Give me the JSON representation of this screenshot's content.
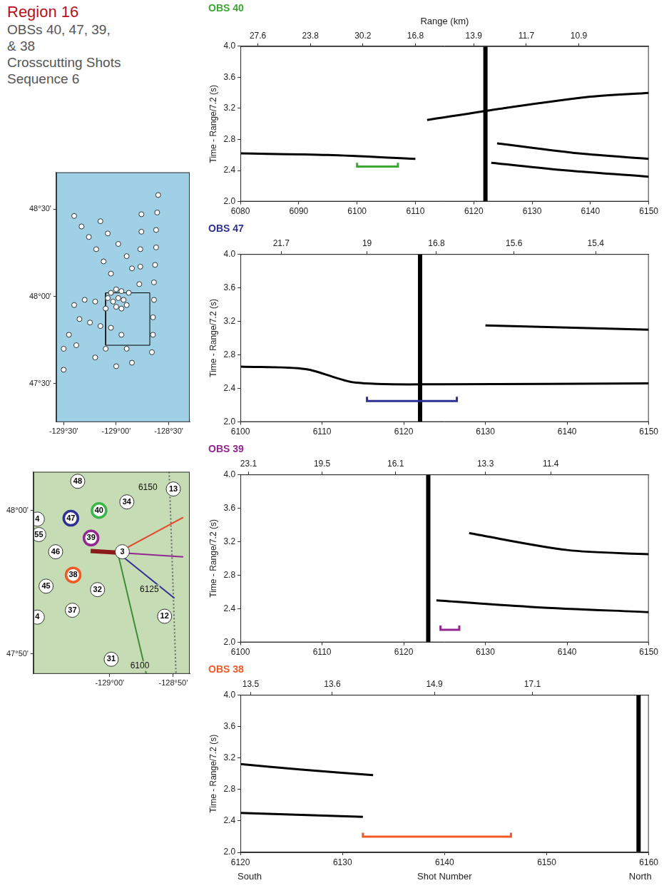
{
  "header": {
    "title": "Region 16",
    "subtitle_lines": [
      "OBSs 40, 47, 39,",
      "& 38",
      "Crosscutting Shots",
      "Sequence 6"
    ]
  },
  "chart_data": [
    {
      "type": "line",
      "title": "OBS 40",
      "color": "#3fa535",
      "x2_label": "Range (km)",
      "y_label": "Time - Range/7.2 (s)",
      "grid": false,
      "xlim": [
        6080,
        6150
      ],
      "xticks": [
        6080,
        6090,
        6100,
        6110,
        6120,
        6130,
        6140,
        6150
      ],
      "x2ticks": [
        {
          "value": 6083,
          "label": "27.6"
        },
        {
          "value": 6092,
          "label": "23.8"
        },
        {
          "value": 6101,
          "label": "30.2"
        },
        {
          "value": 6110,
          "label": "16.8"
        },
        {
          "value": 6120,
          "label": "13.9"
        },
        {
          "value": 6129,
          "label": "11.7"
        },
        {
          "value": 6138,
          "label": "10.9"
        }
      ],
      "ylim": [
        2,
        4
      ],
      "yticks": [
        {
          "value": 2,
          "label": "2.0"
        },
        {
          "value": 2.4,
          "label": "2.4"
        },
        {
          "value": 2.8,
          "label": "2.8"
        },
        {
          "value": 3.2,
          "label": "3.2"
        },
        {
          "value": 3.6,
          "label": "3.6"
        },
        {
          "value": 4,
          "label": "4.0"
        }
      ],
      "strong_trace": 6122,
      "events": [
        [
          [
            6123,
            2.5
          ],
          [
            6136,
            2.4
          ],
          [
            6150,
            2.32
          ]
        ],
        [
          [
            6124,
            2.75
          ],
          [
            6138,
            2.62
          ],
          [
            6150,
            2.55
          ]
        ],
        [
          [
            6080,
            2.62
          ],
          [
            6095,
            2.6
          ],
          [
            6110,
            2.55
          ]
        ],
        [
          [
            6112,
            3.05
          ],
          [
            6125,
            3.2
          ],
          [
            6140,
            3.35
          ],
          [
            6150,
            3.4
          ]
        ]
      ],
      "bracket": {
        "x": [
          6100,
          6107
        ],
        "y": 2.45,
        "tip": 2.5
      }
    },
    {
      "type": "line",
      "title": "OBS 47",
      "color": "#2e3192",
      "y_label": "Time - Range/7.2 (s)",
      "grid": false,
      "xlim": [
        6100,
        6150
      ],
      "xticks": [
        6100,
        6110,
        6120,
        6130,
        6140,
        6150
      ],
      "x2ticks": [
        {
          "value": 6105,
          "label": "21.7"
        },
        {
          "value": 6115.5,
          "label": "19"
        },
        {
          "value": 6124,
          "label": "16.8"
        },
        {
          "value": 6133.5,
          "label": "15.6"
        },
        {
          "value": 6143.5,
          "label": "15.4"
        }
      ],
      "ylim": [
        2,
        4
      ],
      "yticks": [
        {
          "value": 2,
          "label": "2.0"
        },
        {
          "value": 2.4,
          "label": "2.4"
        },
        {
          "value": 2.8,
          "label": "2.8"
        },
        {
          "value": 3.2,
          "label": "3.2"
        },
        {
          "value": 3.6,
          "label": "3.6"
        },
        {
          "value": 4,
          "label": "4.0"
        }
      ],
      "strong_trace": 6122,
      "events": [
        [
          [
            6100,
            2.66
          ],
          [
            6108,
            2.63
          ],
          [
            6114,
            2.47
          ],
          [
            6125,
            2.45
          ],
          [
            6150,
            2.46
          ]
        ],
        [
          [
            6130,
            3.15
          ],
          [
            6150,
            3.1
          ]
        ]
      ],
      "bracket": {
        "x": [
          6115.5,
          6126.5
        ],
        "y": 2.25,
        "tip": 2.3
      }
    },
    {
      "type": "line",
      "title": "OBS 39",
      "color": "#92278f",
      "y_label": "Time - Range/7.2 (s)",
      "grid": false,
      "xlim": [
        6100,
        6150
      ],
      "xticks": [
        6100,
        6110,
        6120,
        6130,
        6140,
        6150
      ],
      "x2ticks": [
        {
          "value": 6101,
          "label": "23.1"
        },
        {
          "value": 6110,
          "label": "19.5"
        },
        {
          "value": 6119,
          "label": "16.1"
        },
        {
          "value": 6130,
          "label": "13.3"
        },
        {
          "value": 6138,
          "label": "11.4"
        }
      ],
      "ylim": [
        2,
        4
      ],
      "yticks": [
        {
          "value": 2,
          "label": "2.0"
        },
        {
          "value": 2.4,
          "label": "2.4"
        },
        {
          "value": 2.8,
          "label": "2.8"
        },
        {
          "value": 3.2,
          "label": "3.2"
        },
        {
          "value": 3.6,
          "label": "3.6"
        },
        {
          "value": 4,
          "label": "4.0"
        }
      ],
      "strong_trace": 6123,
      "events": [
        [
          [
            6124,
            2.5
          ],
          [
            6136,
            2.42
          ],
          [
            6150,
            2.36
          ]
        ],
        [
          [
            6128,
            3.3
          ],
          [
            6140,
            3.1
          ],
          [
            6150,
            3.05
          ]
        ]
      ],
      "bracket": {
        "x": [
          6124.5,
          6126.8
        ],
        "y": 2.15,
        "tip": 2.2
      }
    },
    {
      "type": "line",
      "title": "OBS 38",
      "color": "#f15a24",
      "x_label": "Shot Number",
      "x_end_labels": [
        "South",
        "North"
      ],
      "y_label": "Time - Range/7.2 (s)",
      "grid": false,
      "xlim": [
        6120,
        6160
      ],
      "xticks": [
        6120,
        6130,
        6140,
        6150,
        6160
      ],
      "x2ticks": [
        {
          "value": 6121,
          "label": "13.5"
        },
        {
          "value": 6129,
          "label": "13.6"
        },
        {
          "value": 6139,
          "label": "14.9"
        },
        {
          "value": 6148.6,
          "label": "17.1"
        }
      ],
      "ylim": [
        2,
        4
      ],
      "yticks": [
        {
          "value": 2,
          "label": "2.0"
        },
        {
          "value": 2.4,
          "label": "2.4"
        },
        {
          "value": 2.8,
          "label": "2.8"
        },
        {
          "value": 3.2,
          "label": "3.2"
        },
        {
          "value": 3.6,
          "label": "3.6"
        },
        {
          "value": 4,
          "label": "4.0"
        }
      ],
      "strong_trace": 6159,
      "events": [
        [
          [
            6120,
            3.12
          ],
          [
            6126,
            3.05
          ],
          [
            6133,
            2.98
          ]
        ],
        [
          [
            6120,
            2.5
          ],
          [
            6132,
            2.45
          ]
        ]
      ],
      "bracket": {
        "x": [
          6132,
          6146.5
        ],
        "y": 2.2,
        "tip": 2.25
      }
    },
    {
      "type": "map",
      "grid": false,
      "xlim": [
        -129.57,
        -128.3
      ],
      "xticks": [
        {
          "value": -129.5,
          "label": "-129°30'"
        },
        {
          "value": -129,
          "label": "-129°00'"
        },
        {
          "value": -128.5,
          "label": "-128°30'"
        }
      ],
      "ylim": [
        47.28,
        48.71
      ],
      "yticks": [
        {
          "value": 47.5,
          "label": "47°30'"
        },
        {
          "value": 48,
          "label": "48°00'"
        },
        {
          "value": 48.5,
          "label": "48°30'"
        }
      ],
      "box": {
        "lon": [
          -129.1,
          -128.68
        ],
        "lat": [
          47.72,
          48.02
        ]
      },
      "stations": [
        [
          -128.6,
          48.58
        ],
        [
          -128.61,
          48.48
        ],
        [
          -128.62,
          48.38
        ],
        [
          -128.62,
          48.28
        ],
        [
          -128.63,
          48.18
        ],
        [
          -128.64,
          48.08
        ],
        [
          -128.64,
          47.98
        ],
        [
          -128.65,
          47.88
        ],
        [
          -128.65,
          47.78
        ],
        [
          -128.66,
          47.68
        ],
        [
          -128.76,
          48.47
        ],
        [
          -128.76,
          48.37
        ],
        [
          -128.77,
          48.27
        ],
        [
          -128.77,
          48.17
        ],
        [
          -128.78,
          48.07
        ],
        [
          -129.4,
          48.46
        ],
        [
          -129.33,
          48.4
        ],
        [
          -129.26,
          48.34
        ],
        [
          -129.19,
          48.27
        ],
        [
          -129.12,
          48.2
        ],
        [
          -129.05,
          48.13
        ],
        [
          -129.15,
          48.43
        ],
        [
          -129.08,
          48.36
        ],
        [
          -128.98,
          48.3
        ],
        [
          -128.9,
          48.23
        ],
        [
          -128.85,
          48.16
        ],
        [
          -129.05,
          48.02
        ],
        [
          -129.0,
          48.04
        ],
        [
          -128.95,
          48.03
        ],
        [
          -128.98,
          47.99
        ],
        [
          -129.03,
          47.97
        ],
        [
          -128.93,
          47.98
        ],
        [
          -129.08,
          47.99
        ],
        [
          -128.88,
          48.02
        ],
        [
          -129.0,
          47.94
        ],
        [
          -128.95,
          47.93
        ],
        [
          -129.1,
          47.93
        ],
        [
          -128.9,
          47.95
        ],
        [
          -129.4,
          47.95
        ],
        [
          -129.3,
          47.98
        ],
        [
          -129.2,
          47.97
        ],
        [
          -129.35,
          47.87
        ],
        [
          -129.25,
          47.85
        ],
        [
          -129.15,
          47.83
        ],
        [
          -129.45,
          47.78
        ],
        [
          -129.5,
          47.7
        ],
        [
          -129.5,
          47.58
        ],
        [
          -129.38,
          47.72
        ],
        [
          -129.05,
          47.82
        ],
        [
          -128.95,
          47.78
        ],
        [
          -128.9,
          47.7
        ],
        [
          -128.85,
          47.62
        ],
        [
          -129.1,
          47.7
        ],
        [
          -129.2,
          47.65
        ],
        [
          -129.0,
          47.6
        ]
      ]
    },
    {
      "type": "map",
      "grid": false,
      "xlim": [
        -129.2,
        -128.79
      ],
      "xticks": [
        {
          "value": -129,
          "label": "-129°00'"
        },
        {
          "value": -128.8333,
          "label": "-128°50'"
        }
      ],
      "ylim": [
        47.81,
        48.045
      ],
      "yticks": [
        {
          "value": 47.8333,
          "label": "47°50'"
        },
        {
          "value": 48,
          "label": "48°00'"
        }
      ],
      "shot_line": [
        [
          -128.844,
          48.045
        ],
        [
          -128.826,
          47.81
        ]
      ],
      "rays": [
        {
          "color": "#e8452c",
          "points": [
            [
              -128.979,
              47.951
            ],
            [
              -128.807,
              47.992
            ]
          ]
        },
        {
          "color": "#92278f",
          "points": [
            [
              -128.979,
              47.951
            ],
            [
              -128.807,
              47.946
            ]
          ]
        },
        {
          "color": "#2e3192",
          "points": [
            [
              -128.979,
              47.951
            ],
            [
              -128.83,
              47.898
            ]
          ]
        },
        {
          "color": "#3f8f3a",
          "points": [
            [
              -128.979,
              47.951
            ],
            [
              -128.904,
              47.81
            ]
          ]
        }
      ],
      "target": {
        "color": "#8b1a1a",
        "points": [
          [
            -129.05,
            47.953
          ],
          [
            -128.98,
            47.951
          ]
        ]
      },
      "stations": [
        {
          "label": "55",
          "lon": -129.186,
          "lat": 47.972
        },
        {
          "label": "48",
          "lon": -129.084,
          "lat": 48.034
        },
        {
          "label": "34",
          "lon": -128.955,
          "lat": 48.01
        },
        {
          "label": "13",
          "lon": -128.833,
          "lat": 48.025
        },
        {
          "label": "47",
          "lon": -129.102,
          "lat": 47.991,
          "color": "#2e3192"
        },
        {
          "label": "40",
          "lon": -129.028,
          "lat": 48.0,
          "color": "#39b54a"
        },
        {
          "label": "4",
          "lon": -129.19,
          "lat": 47.99
        },
        {
          "label": "39",
          "lon": -129.049,
          "lat": 47.968,
          "color": "#92278f"
        },
        {
          "label": "46",
          "lon": -129.142,
          "lat": 47.952
        },
        {
          "label": "38",
          "lon": -129.096,
          "lat": 47.925,
          "color": "#f15a24"
        },
        {
          "label": "45",
          "lon": -129.167,
          "lat": 47.912
        },
        {
          "label": "32",
          "lon": -129.032,
          "lat": 47.908
        },
        {
          "label": "37",
          "lon": -129.098,
          "lat": 47.884
        },
        {
          "label": "4",
          "lon": -129.19,
          "lat": 47.876
        },
        {
          "label": "12",
          "lon": -128.856,
          "lat": 47.877
        },
        {
          "label": "31",
          "lon": -128.996,
          "lat": 47.827
        },
        {
          "label": "3",
          "lon": -128.967,
          "lat": 47.952
        }
      ],
      "shot_labels": [
        {
          "label": "6150",
          "lon": -128.9,
          "lat": 48.027
        },
        {
          "label": "6125",
          "lon": -128.896,
          "lat": 47.908
        },
        {
          "label": "6100",
          "lon": -128.921,
          "lat": 47.819
        }
      ]
    }
  ]
}
